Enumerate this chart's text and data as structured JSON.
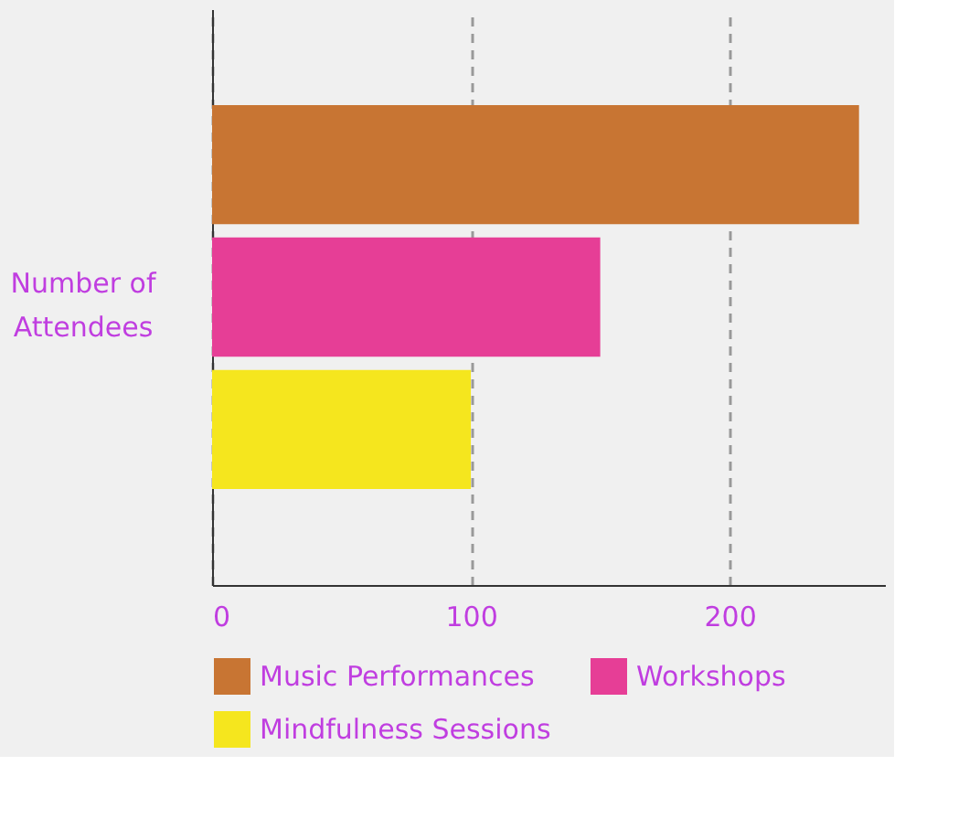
{
  "chart_data": {
    "type": "bar",
    "orientation": "horizontal",
    "ylabel": "Number of Attendees",
    "categories": [
      null
    ],
    "series": [
      {
        "name": "Music Performances",
        "color": "#c87533",
        "values": [
          250
        ]
      },
      {
        "name": "Workshops",
        "color": "#e63e96",
        "values": [
          150
        ]
      },
      {
        "name": "Mindfulness Sessions",
        "color": "#f5e61e",
        "values": [
          100
        ]
      }
    ],
    "xlim": [
      0,
      260
    ],
    "xticks": [
      0,
      100,
      200
    ],
    "grid": "x",
    "legend": "bottom"
  }
}
